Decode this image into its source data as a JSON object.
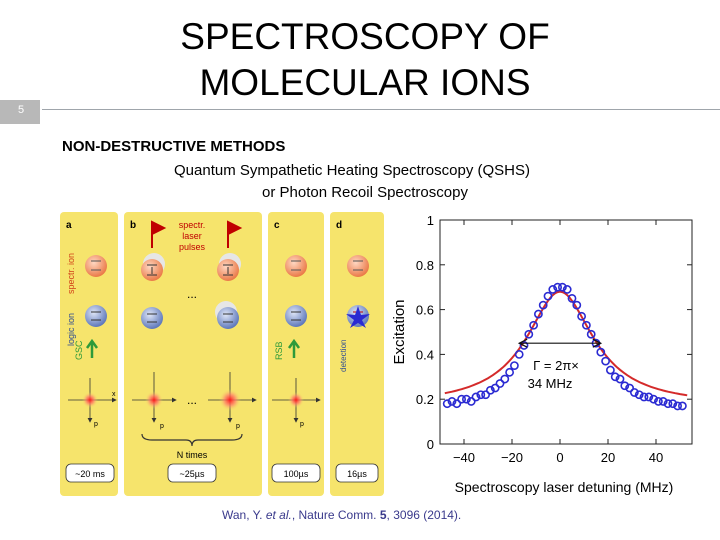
{
  "slide": {
    "number": "5",
    "title_line1": "SPECTROSCOPY OF",
    "title_line2": "MOLECULAR IONS"
  },
  "content": {
    "heading": "NON-DESTRUCTIVE METHODS",
    "line2": "Quantum Sympathetic Heating Spectroscopy (QSHS)",
    "line3": "or Photon Recoil Spectroscopy"
  },
  "citation": {
    "prefix": "Wan, Y. ",
    "etal": "et al.",
    "middle": ", Nature Comm. ",
    "volume": "5",
    "suffix": ", 3096 (2014)."
  },
  "panels": {
    "labels": [
      "a",
      "b",
      "c",
      "d"
    ],
    "spectr_ion": "spectr. ion",
    "logic_ion": "logic ion",
    "gsc": "GSC",
    "rsb": "RSB",
    "detection": "detection",
    "laser_text": [
      "spectr.",
      "laser",
      "pulses"
    ],
    "ellipsis": "...",
    "axis_x": "x",
    "axis_p": "p",
    "n_times": "N times",
    "durations": [
      "~20 ms",
      "~25µs",
      "100µs",
      "16µs"
    ],
    "colors": {
      "panel_bg": "#f6e46c",
      "spectr_ion": "#ef8a5a",
      "logic_ion": "#6f88c6",
      "arrow": "#2e9a3a",
      "laser": "#c00000"
    }
  },
  "chart_data": {
    "type": "scatter",
    "xlabel": "Spectroscopy laser detuning (MHz)",
    "ylabel": "Excitation",
    "xlim": [
      -50,
      55
    ],
    "ylim": [
      0,
      1
    ],
    "x_ticks": [
      -40,
      -20,
      0,
      20,
      40
    ],
    "x_tick_labels": [
      "−40",
      "−20",
      "0",
      "20",
      "40"
    ],
    "y_ticks": [
      0,
      0.2,
      0.4,
      0.6,
      0.8,
      1
    ],
    "y_tick_labels": [
      "0",
      "0.2",
      "0.4",
      "0.6",
      "0.8",
      "1"
    ],
    "annotation_line1": "Γ = 2π×",
    "annotation_line2": "34 MHz",
    "width_arrow": {
      "from_x": -17,
      "to_x": 17,
      "y": 0.45
    },
    "fit_curve": {
      "color": "#d42a2a",
      "peak": 0.68,
      "baseline": 0.17,
      "fwhm": 34
    },
    "marker_color": "#2a2ad2",
    "x": [
      -47,
      -45,
      -43,
      -41,
      -39,
      -37,
      -35,
      -33,
      -31,
      -29,
      -27,
      -25,
      -23,
      -21,
      -19,
      -17,
      -15,
      -13,
      -11,
      -9,
      -7,
      -5,
      -3,
      -1,
      1,
      3,
      5,
      7,
      9,
      11,
      13,
      15,
      17,
      19,
      21,
      23,
      25,
      27,
      29,
      31,
      33,
      35,
      37,
      39,
      41,
      43,
      45,
      47,
      49,
      51
    ],
    "y": [
      0.18,
      0.19,
      0.18,
      0.2,
      0.2,
      0.19,
      0.21,
      0.22,
      0.22,
      0.24,
      0.25,
      0.27,
      0.29,
      0.32,
      0.35,
      0.4,
      0.44,
      0.49,
      0.53,
      0.58,
      0.62,
      0.66,
      0.69,
      0.7,
      0.7,
      0.69,
      0.65,
      0.62,
      0.57,
      0.53,
      0.49,
      0.45,
      0.41,
      0.37,
      0.33,
      0.3,
      0.29,
      0.26,
      0.25,
      0.23,
      0.22,
      0.21,
      0.21,
      0.2,
      0.19,
      0.19,
      0.18,
      0.18,
      0.17,
      0.17
    ]
  }
}
